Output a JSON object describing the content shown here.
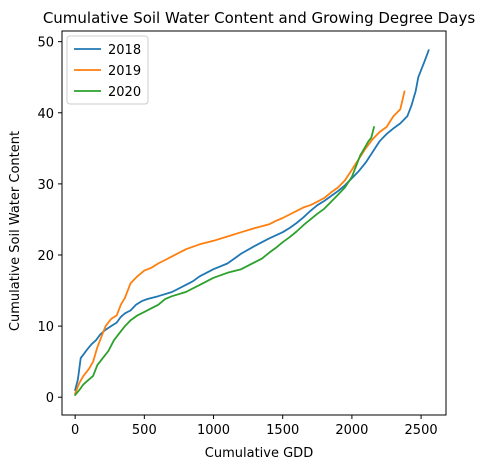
{
  "chart_data": {
    "type": "line",
    "title": "Cumulative Soil Water Content and Growing Degree Days",
    "xlabel": "Cumulative GDD",
    "ylabel": "Cumulative Soil Water Content",
    "xlim": [
      -95,
      2680
    ],
    "ylim": [
      -2.5,
      51.5
    ],
    "xticks": [
      0,
      500,
      1000,
      1500,
      2000,
      2500
    ],
    "yticks": [
      0,
      10,
      20,
      30,
      40,
      50
    ],
    "grid": false,
    "legend_position": "upper-left",
    "series": [
      {
        "name": "2018",
        "color": "#1f77b4",
        "x": [
          0,
          20,
          40,
          60,
          90,
          120,
          150,
          180,
          220,
          260,
          300,
          330,
          360,
          400,
          440,
          480,
          520,
          600,
          700,
          800,
          850,
          900,
          1000,
          1100,
          1150,
          1200,
          1300,
          1400,
          1500,
          1550,
          1600,
          1650,
          1700,
          1750,
          1800,
          1850,
          1900,
          1950,
          2000,
          2050,
          2100,
          2150,
          2200,
          2250,
          2300,
          2350,
          2400,
          2430,
          2460,
          2480,
          2500,
          2520,
          2540,
          2555
        ],
        "y": [
          1.0,
          2.5,
          5.5,
          6.0,
          6.8,
          7.5,
          8.0,
          8.8,
          9.5,
          10.0,
          10.5,
          11.3,
          11.8,
          12.2,
          13.0,
          13.5,
          13.8,
          14.2,
          14.8,
          15.8,
          16.3,
          17.0,
          18.0,
          18.8,
          19.5,
          20.2,
          21.3,
          22.3,
          23.2,
          23.8,
          24.5,
          25.3,
          26.2,
          27.0,
          27.6,
          28.3,
          29.0,
          29.8,
          30.8,
          31.8,
          33.0,
          34.5,
          36.0,
          37.0,
          37.8,
          38.5,
          39.5,
          41.0,
          43.0,
          45.0,
          46.0,
          47.0,
          48.0,
          48.8
        ]
      },
      {
        "name": "2019",
        "color": "#ff7f0e",
        "x": [
          0,
          30,
          60,
          100,
          130,
          160,
          190,
          220,
          260,
          300,
          330,
          360,
          400,
          450,
          500,
          550,
          600,
          650,
          700,
          800,
          900,
          1000,
          1100,
          1200,
          1300,
          1400,
          1450,
          1500,
          1550,
          1600,
          1650,
          1700,
          1750,
          1800,
          1850,
          1900,
          1950,
          2000,
          2050,
          2100,
          2150,
          2200,
          2250,
          2300,
          2350,
          2380
        ],
        "y": [
          0.5,
          2.0,
          3.0,
          4.0,
          5.0,
          7.0,
          8.5,
          10.0,
          11.0,
          11.5,
          13.0,
          14.0,
          16.0,
          17.0,
          17.8,
          18.2,
          18.8,
          19.3,
          19.8,
          20.8,
          21.5,
          22.0,
          22.6,
          23.2,
          23.8,
          24.3,
          24.8,
          25.2,
          25.7,
          26.2,
          26.7,
          27.0,
          27.5,
          28.0,
          28.8,
          29.5,
          30.5,
          32.0,
          33.5,
          35.0,
          36.3,
          37.3,
          38.0,
          39.5,
          40.5,
          43.0
        ]
      },
      {
        "name": "2020",
        "color": "#2ca02c",
        "x": [
          0,
          30,
          60,
          100,
          130,
          160,
          200,
          240,
          280,
          320,
          360,
          400,
          450,
          500,
          550,
          600,
          650,
          700,
          800,
          900,
          1000,
          1100,
          1200,
          1300,
          1350,
          1400,
          1450,
          1500,
          1550,
          1600,
          1650,
          1700,
          1750,
          1800,
          1850,
          1900,
          1950,
          2000,
          2030,
          2060,
          2090,
          2120,
          2140,
          2160
        ],
        "y": [
          0.3,
          1.0,
          1.8,
          2.5,
          3.0,
          4.5,
          5.5,
          6.5,
          8.0,
          9.0,
          10.0,
          10.8,
          11.5,
          12.0,
          12.5,
          13.0,
          13.8,
          14.2,
          14.8,
          15.8,
          16.8,
          17.5,
          18.0,
          19.0,
          19.5,
          20.3,
          21.0,
          21.8,
          22.5,
          23.3,
          24.2,
          25.0,
          25.8,
          26.5,
          27.5,
          28.5,
          29.5,
          31.0,
          32.5,
          34.0,
          35.0,
          36.0,
          36.5,
          38.0
        ]
      }
    ]
  }
}
